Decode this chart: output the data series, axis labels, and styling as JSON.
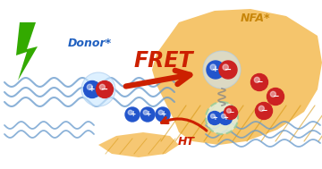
{
  "bg_color": "#ffffff",
  "donor_label": "Donor*",
  "nfa_label": "NFA*",
  "fret_label": "FRET",
  "ht_label": "HT",
  "donor_label_color": "#2060c0",
  "nfa_label_color": "#c8860a",
  "fret_color": "#cc2000",
  "ht_color": "#cc2000",
  "blue_ball_color": "#2255cc",
  "red_ball_color": "#cc2222",
  "nfa_blob_color": "#f5c060",
  "polymer_line_color": "#6699cc",
  "lightning_color": "#33aa00",
  "glow_color": "#cce8ff",
  "dashed_circle_color": "#99cc99",
  "dashed_circle_fill": "#e0f0e0"
}
